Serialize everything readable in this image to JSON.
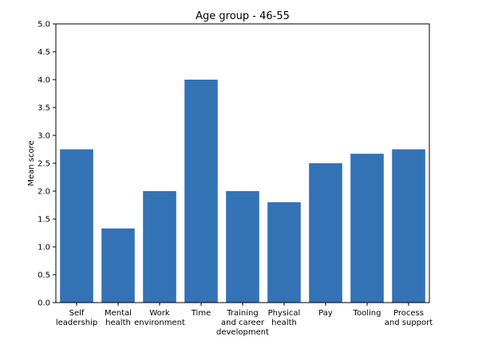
{
  "chart_data": {
    "type": "bar",
    "title": "Age group - 46-55",
    "xlabel": "",
    "ylabel": "Mean score",
    "ylim": [
      0,
      5
    ],
    "yticks": [
      "0.0",
      "0.5",
      "1.0",
      "1.5",
      "2.0",
      "2.5",
      "3.0",
      "3.5",
      "4.0",
      "4.5",
      "5.0"
    ],
    "grid": false,
    "bar_color": "#3472b6",
    "categories": [
      [
        "Self",
        "leadership"
      ],
      [
        "Mental",
        "health"
      ],
      [
        "Work",
        "environment"
      ],
      [
        "Time"
      ],
      [
        "Training",
        "and career",
        "development"
      ],
      [
        "Physical",
        "health"
      ],
      [
        "Pay"
      ],
      [
        "Tooling"
      ],
      [
        "Process",
        "and support"
      ]
    ],
    "values": [
      2.75,
      1.33,
      2.0,
      4.0,
      2.0,
      1.8,
      2.5,
      2.67,
      2.75
    ]
  }
}
